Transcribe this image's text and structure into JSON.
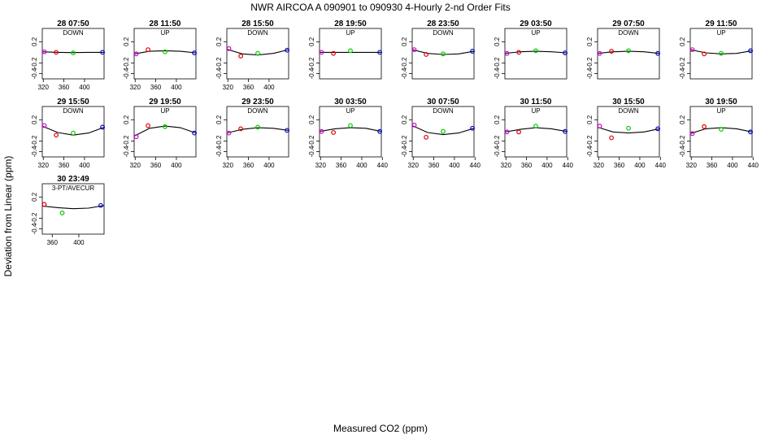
{
  "title": "NWR   AIRCOA A   090901 to 090930   4-Hourly 2-nd Order Fits",
  "ylabel": "Deviation from Linear (ppm)",
  "xlabel": "Measured CO2 (ppm)",
  "colors": {
    "point1": "#cc00cc",
    "point2": "#dd0000",
    "point3": "#00cc00",
    "point4": "#0000cc",
    "curve": "#000000"
  },
  "chart_data": [
    {
      "type": "scatter",
      "title": "28 07:50",
      "subtitle": "DOWN",
      "xlim": [
        318,
        438
      ],
      "ylim": [
        -0.5,
        0.45
      ],
      "xticks": [
        320,
        360,
        400
      ],
      "yticks": [
        -0.4,
        -0.2,
        0.2
      ],
      "x": [
        322,
        345,
        378,
        435
      ],
      "y": [
        0.01,
        0.0,
        -0.01,
        0.0
      ],
      "fit": [
        0.01,
        0.0,
        -0.005,
        0.0,
        0.0
      ]
    },
    {
      "type": "scatter",
      "title": "28 11:50",
      "subtitle": "UP",
      "xlim": [
        318,
        438
      ],
      "ylim": [
        -0.5,
        0.45
      ],
      "xticks": [
        320,
        360,
        400
      ],
      "yticks": [
        -0.4,
        -0.2,
        0.2
      ],
      "x": [
        322,
        345,
        378,
        435
      ],
      "y": [
        -0.03,
        0.05,
        0.01,
        -0.01
      ],
      "fit": [
        -0.03,
        0.02,
        0.03,
        0.02,
        -0.01
      ]
    },
    {
      "type": "scatter",
      "title": "28 15:50",
      "subtitle": "DOWN",
      "xlim": [
        318,
        438
      ],
      "ylim": [
        -0.5,
        0.45
      ],
      "xticks": [
        320,
        360,
        400
      ],
      "yticks": [
        -0.4,
        -0.2,
        0.2
      ],
      "x": [
        322,
        345,
        378,
        435
      ],
      "y": [
        0.07,
        -0.07,
        -0.02,
        0.04
      ],
      "fit": [
        0.06,
        -0.03,
        -0.05,
        -0.02,
        0.05
      ]
    },
    {
      "type": "scatter",
      "title": "28 19:50",
      "subtitle": "UP",
      "xlim": [
        318,
        438
      ],
      "ylim": [
        -0.5,
        0.45
      ],
      "xticks": [],
      "yticks": [
        -0.4,
        -0.2,
        0.2
      ],
      "x": [
        322,
        345,
        378,
        435
      ],
      "y": [
        0.0,
        -0.02,
        0.03,
        0.0
      ],
      "fit": [
        0.0,
        0.0,
        0.0,
        0.0,
        0.0
      ]
    },
    {
      "type": "scatter",
      "title": "28 23:50",
      "subtitle": "DOWN",
      "xlim": [
        318,
        438
      ],
      "ylim": [
        -0.5,
        0.45
      ],
      "xticks": [],
      "yticks": [
        -0.4,
        -0.2,
        0.2
      ],
      "x": [
        322,
        345,
        378,
        435
      ],
      "y": [
        0.05,
        -0.04,
        -0.03,
        0.02
      ],
      "fit": [
        0.05,
        -0.02,
        -0.04,
        -0.03,
        0.02
      ]
    },
    {
      "type": "scatter",
      "title": "29 03:50",
      "subtitle": "UP",
      "xlim": [
        318,
        438
      ],
      "ylim": [
        -0.5,
        0.45
      ],
      "xticks": [],
      "yticks": [
        -0.4,
        -0.2,
        0.2
      ],
      "x": [
        322,
        345,
        378,
        435
      ],
      "y": [
        -0.02,
        0.0,
        0.03,
        -0.01
      ],
      "fit": [
        -0.02,
        0.01,
        0.02,
        0.01,
        -0.01
      ]
    },
    {
      "type": "scatter",
      "title": "29 07:50",
      "subtitle": "DOWN",
      "xlim": [
        318,
        438
      ],
      "ylim": [
        -0.5,
        0.45
      ],
      "xticks": [],
      "yticks": [
        -0.4,
        -0.2,
        0.2
      ],
      "x": [
        322,
        345,
        378,
        435
      ],
      "y": [
        -0.02,
        0.02,
        0.03,
        -0.02
      ],
      "fit": [
        -0.02,
        0.01,
        0.02,
        0.01,
        -0.02
      ]
    },
    {
      "type": "scatter",
      "title": "29 11:50",
      "subtitle": "UP",
      "xlim": [
        318,
        438
      ],
      "ylim": [
        -0.5,
        0.45
      ],
      "xticks": [],
      "yticks": [
        -0.4,
        -0.2,
        0.2
      ],
      "x": [
        322,
        345,
        378,
        435
      ],
      "y": [
        0.05,
        -0.03,
        -0.02,
        0.03
      ],
      "fit": [
        0.05,
        -0.01,
        -0.03,
        -0.02,
        0.03
      ]
    },
    {
      "type": "scatter",
      "title": "29 15:50",
      "subtitle": "DOWN",
      "xlim": [
        318,
        438
      ],
      "ylim": [
        -0.5,
        0.45
      ],
      "xticks": [
        320,
        360,
        400
      ],
      "yticks": [
        -0.4,
        -0.2,
        0.2
      ],
      "x": [
        322,
        345,
        378,
        435
      ],
      "y": [
        0.09,
        -0.09,
        -0.05,
        0.06
      ],
      "fit": [
        0.08,
        -0.04,
        -0.09,
        -0.05,
        0.06
      ]
    },
    {
      "type": "scatter",
      "title": "29 19:50",
      "subtitle": "UP",
      "xlim": [
        318,
        438
      ],
      "ylim": [
        -0.5,
        0.45
      ],
      "xticks": [
        320,
        360,
        400
      ],
      "yticks": [
        -0.4,
        -0.2,
        0.2
      ],
      "x": [
        322,
        345,
        378,
        435
      ],
      "y": [
        -0.12,
        0.09,
        0.07,
        -0.05
      ],
      "fit": [
        -0.11,
        0.04,
        0.08,
        0.05,
        -0.05
      ]
    },
    {
      "type": "scatter",
      "title": "29 23:50",
      "subtitle": "DOWN",
      "xlim": [
        318,
        438
      ],
      "ylim": [
        -0.5,
        0.45
      ],
      "xticks": [
        320,
        360,
        400
      ],
      "yticks": [
        -0.4,
        -0.2,
        0.2
      ],
      "x": [
        322,
        345,
        378,
        435
      ],
      "y": [
        -0.05,
        0.03,
        0.06,
        0.0
      ],
      "fit": [
        -0.05,
        0.02,
        0.05,
        0.04,
        0.0
      ]
    },
    {
      "type": "scatter",
      "title": "30 03:50",
      "subtitle": "UP",
      "xlim": [
        318,
        438
      ],
      "ylim": [
        -0.5,
        0.45
      ],
      "xticks": [
        320,
        360,
        400,
        440
      ],
      "yticks": [
        -0.4,
        -0.2,
        0.2
      ],
      "x": [
        322,
        345,
        378,
        435
      ],
      "y": [
        -0.02,
        -0.04,
        0.09,
        -0.02
      ],
      "fit": [
        -0.02,
        0.03,
        0.05,
        0.04,
        -0.02
      ]
    },
    {
      "type": "scatter",
      "title": "30 07:50",
      "subtitle": "DOWN",
      "xlim": [
        318,
        438
      ],
      "ylim": [
        -0.5,
        0.45
      ],
      "xticks": [
        320,
        360,
        400,
        440
      ],
      "yticks": [
        -0.4,
        -0.2,
        0.2
      ],
      "x": [
        322,
        345,
        378,
        435
      ],
      "y": [
        0.1,
        -0.13,
        -0.02,
        0.04
      ],
      "fit": [
        0.09,
        -0.04,
        -0.08,
        -0.05,
        0.04
      ]
    },
    {
      "type": "scatter",
      "title": "30 11:50",
      "subtitle": "UP",
      "xlim": [
        318,
        438
      ],
      "ylim": [
        -0.5,
        0.45
      ],
      "xticks": [
        320,
        360,
        400,
        440
      ],
      "yticks": [
        -0.4,
        -0.2,
        0.2
      ],
      "x": [
        322,
        345,
        378,
        435
      ],
      "y": [
        -0.03,
        -0.03,
        0.08,
        -0.02
      ],
      "fit": [
        -0.03,
        0.02,
        0.05,
        0.03,
        -0.02
      ]
    },
    {
      "type": "scatter",
      "title": "30 15:50",
      "subtitle": "DOWN",
      "xlim": [
        318,
        438
      ],
      "ylim": [
        -0.5,
        0.45
      ],
      "xticks": [
        320,
        360,
        400,
        440
      ],
      "yticks": [
        -0.4,
        -0.2,
        0.2
      ],
      "x": [
        322,
        345,
        378,
        435
      ],
      "y": [
        0.08,
        -0.14,
        0.04,
        0.03
      ],
      "fit": [
        0.06,
        -0.03,
        -0.05,
        -0.03,
        0.03
      ]
    },
    {
      "type": "scatter",
      "title": "30 19:50",
      "subtitle": "UP",
      "xlim": [
        318,
        438
      ],
      "ylim": [
        -0.5,
        0.45
      ],
      "xticks": [
        320,
        360,
        400,
        440
      ],
      "yticks": [
        -0.4,
        -0.2,
        0.2
      ],
      "x": [
        322,
        345,
        378,
        435
      ],
      "y": [
        -0.06,
        0.07,
        0.02,
        -0.03
      ],
      "fit": [
        -0.06,
        0.03,
        0.05,
        0.03,
        -0.03
      ]
    },
    {
      "type": "scatter",
      "title": "30 23:49",
      "subtitle": "3-PT/AVECUR",
      "xlim": [
        345,
        438
      ],
      "ylim": [
        -0.5,
        0.45
      ],
      "xticks": [
        360,
        400
      ],
      "yticks": [
        -0.4,
        -0.2,
        0.2
      ],
      "x": [
        348,
        375,
        433
      ],
      "y": [
        0.06,
        -0.1,
        0.04
      ],
      "fit": [
        0.03,
        0.0,
        -0.02,
        -0.01,
        0.04
      ]
    }
  ]
}
